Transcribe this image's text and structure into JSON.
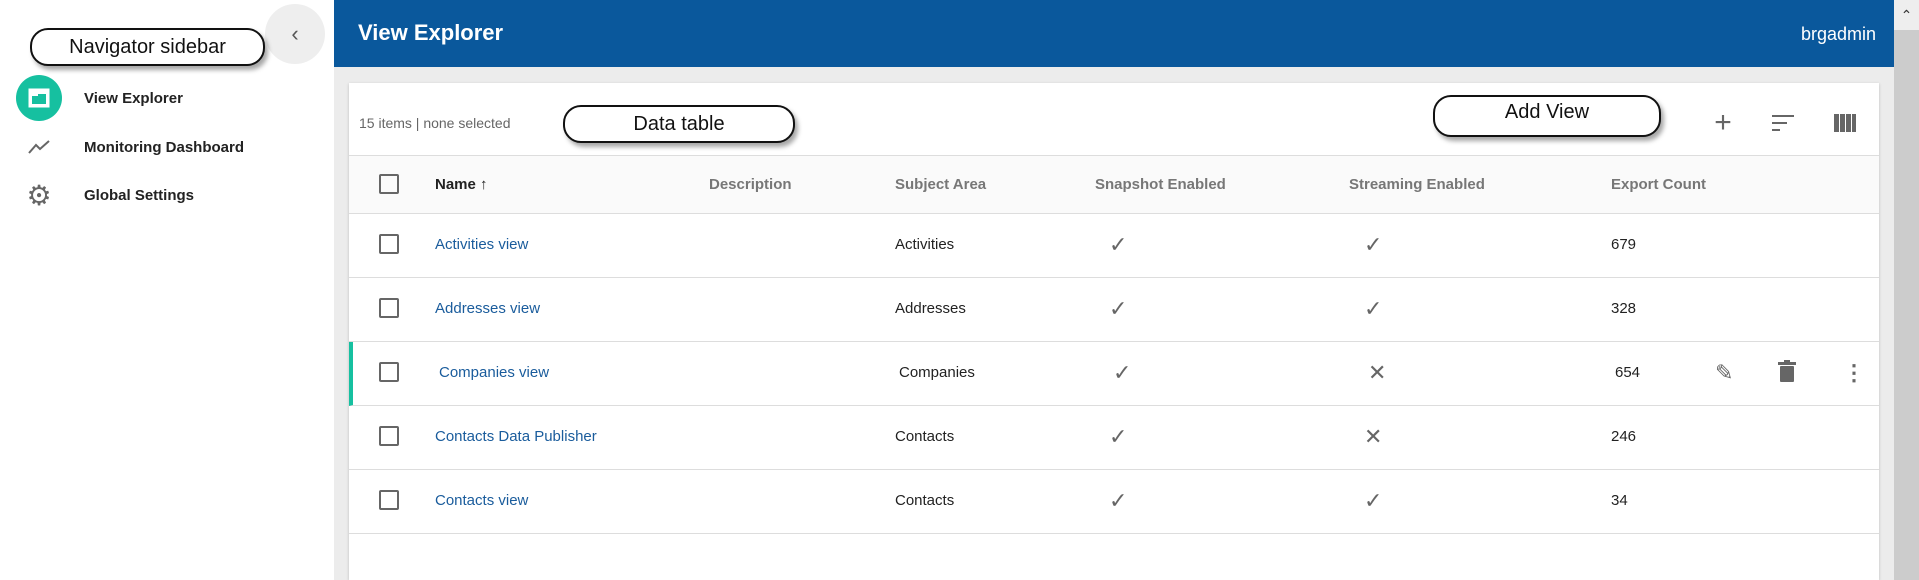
{
  "sidebar": {
    "items": [
      {
        "label": "View Explorer",
        "icon": "folder-icon",
        "active": true
      },
      {
        "label": "Monitoring Dashboard",
        "icon": "trending-icon"
      },
      {
        "label": "Global Settings",
        "icon": "gear-icon"
      }
    ],
    "active_color": "#16c0a0"
  },
  "header": {
    "title": "View Explorer",
    "user": "brgadmin",
    "color": "#0a589c"
  },
  "toolbar": {
    "count": "15 items | none selected",
    "icons": [
      "add-icon",
      "sort-icon",
      "columns-icon"
    ]
  },
  "table": {
    "columns": [
      "Name",
      "Description",
      "Subject Area",
      "Snapshot Enabled",
      "Streaming Enabled",
      "Export Count"
    ],
    "sort": "Name ascending",
    "rows": [
      {
        "name": "Activities view",
        "description": "",
        "subject": "Activities",
        "snapshot": true,
        "streaming": true,
        "exports": "679"
      },
      {
        "name": "Addresses view",
        "description": "",
        "subject": "Addresses",
        "snapshot": true,
        "streaming": true,
        "exports": "328"
      },
      {
        "name": "Companies view",
        "description": "",
        "subject": "Companies",
        "snapshot": true,
        "streaming": false,
        "exports": "654",
        "hovered": true
      },
      {
        "name": "Contacts Data Publisher",
        "description": "",
        "subject": "Contacts",
        "snapshot": true,
        "streaming": false,
        "exports": "246"
      },
      {
        "name": "Contacts view",
        "description": "",
        "subject": "Contacts",
        "snapshot": true,
        "streaming": true,
        "exports": "34"
      }
    ]
  },
  "callouts": {
    "sidebar": "Navigator sidebar",
    "table": "Data table",
    "add": "Add View"
  }
}
